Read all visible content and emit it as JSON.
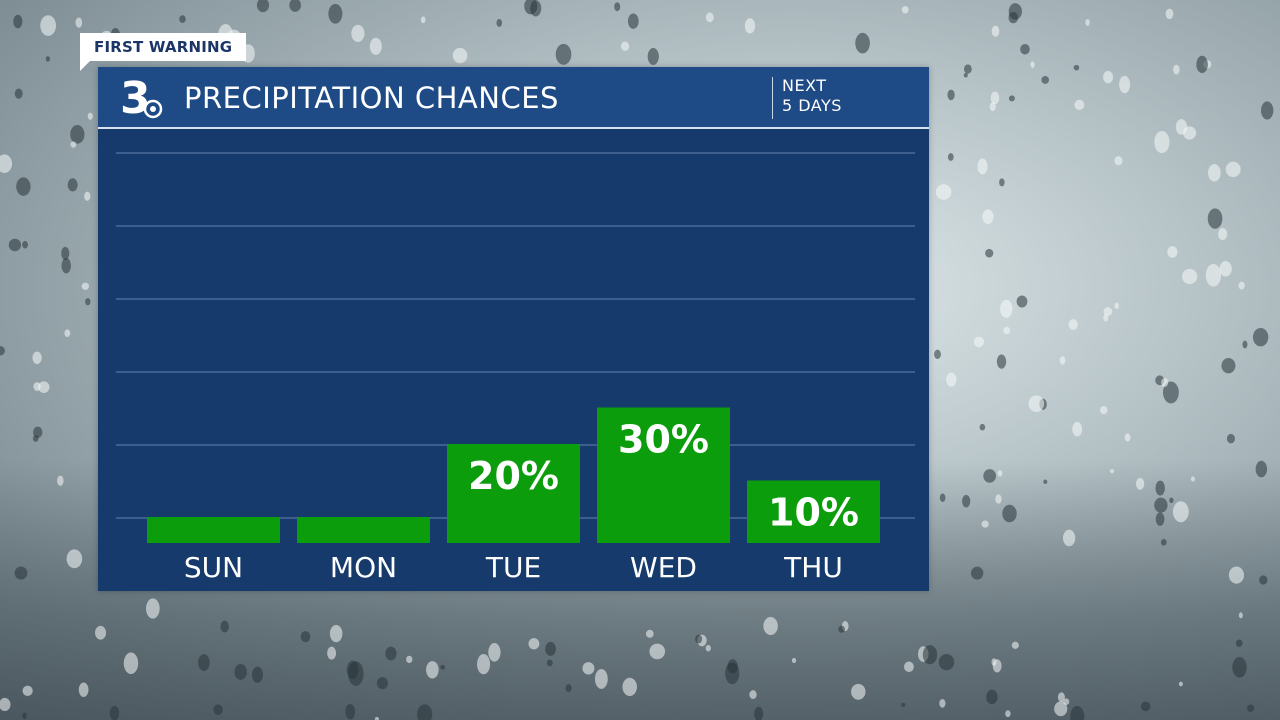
{
  "badge": "FIRST WARNING",
  "header": {
    "title": "PRECIPITATION CHANCES",
    "logo_text": "3",
    "next_line1": "NEXT",
    "next_line2": "5 DAYS"
  },
  "colors": {
    "panel": "#163a6b",
    "header": "#1e4a86",
    "bar": "#0c9d0c",
    "text": "#ffffff"
  },
  "chart_data": {
    "type": "bar",
    "categories": [
      "SUN",
      "MON",
      "TUE",
      "WED",
      "THU"
    ],
    "values": [
      0,
      0,
      20,
      30,
      10
    ],
    "labels": [
      "",
      "",
      "20%",
      "30%",
      "10%"
    ],
    "ylim": [
      0,
      100
    ],
    "grid": true,
    "title": "PRECIPITATION CHANCES"
  }
}
